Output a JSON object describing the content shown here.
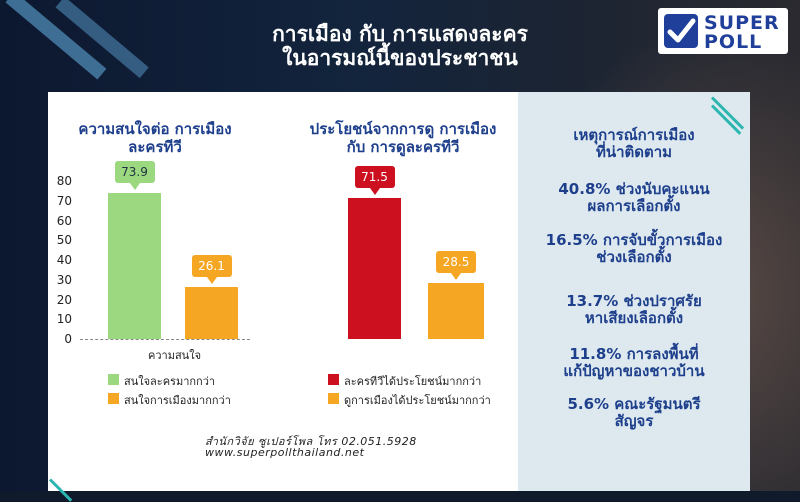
{
  "header": {
    "title_line1": "การเมือง กับ การแสดงละคร",
    "title_line2": "ในอารมณ์นี้ของประชาชน"
  },
  "logo": {
    "top": "SUPER",
    "bottom": "POLL"
  },
  "colors": {
    "green": "#9cd87f",
    "orange": "#f5a623",
    "red": "#cc1020",
    "navy": "#1e3f8c"
  },
  "chart_data": [
    {
      "type": "bar",
      "title_line1": "ความสนใจต่อ การเมือง",
      "title_line2": "ละครทีวี",
      "yticks": [
        0,
        10,
        20,
        30,
        40,
        50,
        60,
        70,
        80
      ],
      "ylim": [
        0,
        80
      ],
      "categories": [
        "ความสนใจ"
      ],
      "series": [
        {
          "name": "สนใจละครมากกว่า",
          "values": [
            73.9
          ],
          "color": "#9cd87f"
        },
        {
          "name": "สนใจการเมืองมากกว่า",
          "values": [
            26.1
          ],
          "color": "#f5a623"
        }
      ],
      "value_labels": [
        "73.9",
        "26.1"
      ],
      "legend": "bottom"
    },
    {
      "type": "bar",
      "title_line1": "ประโยชน์จากการดู การเมือง",
      "title_line2": "กับ การดูละครทีวี",
      "ylim": [
        0,
        80
      ],
      "series": [
        {
          "name": "ละครทีวีได้ประโยชน์มากกว่า",
          "values": [
            71.5
          ],
          "color": "#cc1020"
        },
        {
          "name": "ดูการเมืองได้ประโยชน์มากกว่า",
          "values": [
            28.5
          ],
          "color": "#f5a623"
        }
      ],
      "value_labels": [
        "71.5",
        "28.5"
      ],
      "legend": "bottom"
    }
  ],
  "events": {
    "title_line1": "เหตุการณ์การเมือง",
    "title_line2": "ที่น่าติดตาม",
    "items": [
      {
        "line1": "40.8% ช่วงนับคะแนน",
        "line2": "ผลการเลือกตั้ง"
      },
      {
        "line1": "16.5% การจับขั้วการเมือง",
        "line2": "ช่วงเลือกตั้ง"
      },
      {
        "line1": "13.7% ช่วงปราศรัย",
        "line2": "หาเสียงเลือกตั้ง"
      },
      {
        "line1": "11.8% การลงพื้นที่",
        "line2": "แก้ปัญหาของชาวบ้าน"
      },
      {
        "line1": "5.6% คณะรัฐมนตรี",
        "line2": "สัญจร"
      }
    ]
  },
  "footer": {
    "line1": "สำนักวิจัย ซูเปอร์โพล โทร 02.051.5928",
    "line2": "www.superpollthailand.net"
  }
}
